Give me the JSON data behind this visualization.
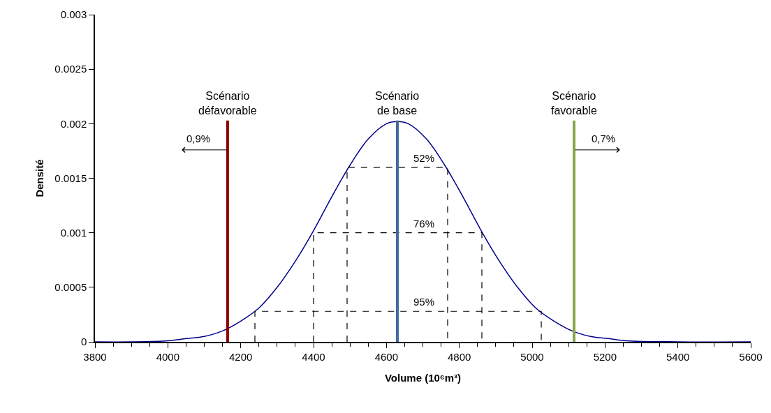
{
  "chart_data": {
    "type": "line",
    "xlabel": "Volume (10⁶m³)",
    "ylabel": "Densité",
    "xlim": [
      3800,
      5600
    ],
    "xticks": [
      3800,
      4000,
      4200,
      4400,
      4600,
      4800,
      5000,
      5200,
      5400,
      5600
    ],
    "ylim": [
      0,
      0.003
    ],
    "yticks": [
      0,
      0.0005,
      0.001,
      0.0015,
      0.002,
      0.0025,
      0.003
    ],
    "legend": false,
    "marker": "none",
    "series": [
      {
        "color": "#00008b",
        "line_style": "solid",
        "x": [
          3800,
          3900,
          4000,
          4050,
          4100,
          4150,
          4200,
          4250,
          4300,
          4350,
          4400,
          4450,
          4500,
          4550,
          4600,
          4630,
          4660,
          4710,
          4760,
          4810,
          4860,
          4910,
          4960,
          5010,
          5060,
          5110,
          5160,
          5210,
          5260,
          5400,
          5600
        ],
        "values": [
          0,
          0,
          1e-05,
          3e-05,
          5e-05,
          0.0001,
          0.00019,
          0.00031,
          0.0005,
          0.00074,
          0.00102,
          0.00133,
          0.00162,
          0.00186,
          0.002,
          0.00202,
          0.002,
          0.00186,
          0.00162,
          0.00133,
          0.00102,
          0.00074,
          0.0005,
          0.00031,
          0.00019,
          0.0001,
          5e-05,
          3e-05,
          1e-05,
          0,
          0
        ]
      },
      {
        "color": "#000000",
        "line_style": "dashed",
        "x": [
          4492,
          4492,
          4768,
          4768
        ],
        "values": [
          0,
          0.0016,
          0.0016,
          0
        ]
      },
      {
        "color": "#000000",
        "line_style": "dashed",
        "x": [
          4400,
          4400,
          4862,
          4862
        ],
        "values": [
          0,
          0.001,
          0.001,
          0
        ]
      },
      {
        "color": "#000000",
        "line_style": "dashed",
        "x": [
          4239,
          4239,
          5025,
          5025
        ],
        "values": [
          0,
          0.00028,
          0.00028,
          0
        ]
      },
      {
        "name": "Scénario\ndéfavorable",
        "color": "#8b0000",
        "line_style": "solid",
        "x": [
          4164,
          4164
        ],
        "values": [
          0,
          0.00203
        ]
      },
      {
        "name": "Scénario\nde base",
        "color": "#44699e",
        "line_style": "solid",
        "x": [
          4630,
          4630
        ],
        "values": [
          0,
          0.00203
        ]
      },
      {
        "name": "Scénario\nfavorable",
        "color": "#8aa64a",
        "line_style": "solid",
        "x": [
          5115,
          5115
        ],
        "values": [
          0,
          0.00203
        ]
      }
    ],
    "annotations": [
      {
        "text": "52%",
        "x": 4630,
        "y": 0.0016
      },
      {
        "text": "76%",
        "x": 4630,
        "y": 0.001
      },
      {
        "text": "95%",
        "x": 4630,
        "y": 0.00028
      },
      {
        "text": "0,9%",
        "x": 4164,
        "y": 0.00176
      },
      {
        "text": "0,7%",
        "x": 5115,
        "y": 0.00176
      }
    ]
  }
}
